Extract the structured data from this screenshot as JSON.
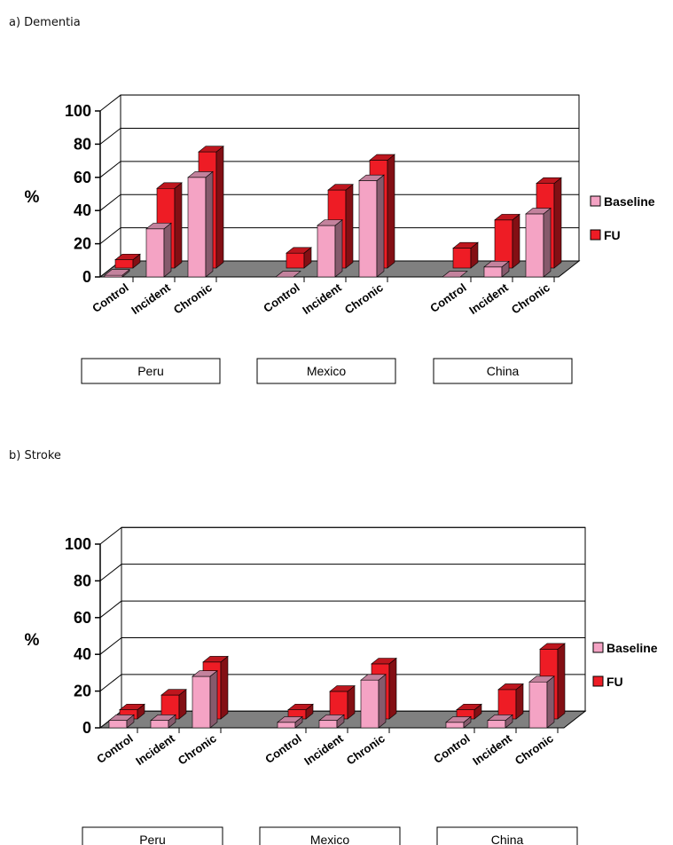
{
  "chart_data": [
    {
      "type": "bar",
      "title": "a) Dementia",
      "ylabel": "%",
      "ylim": [
        0,
        100
      ],
      "yticks": [
        "0",
        "20",
        "40",
        "60",
        "80",
        "100"
      ],
      "groups": [
        "Peru",
        "Mexico",
        "China"
      ],
      "categories": [
        "Control",
        "Incident",
        "Chronic"
      ],
      "series": [
        {
          "name": "Baseline",
          "color": "#f4a3c4",
          "values": [
            [
              1,
              29,
              60
            ],
            [
              0,
              31,
              58
            ],
            [
              0,
              6,
              38
            ]
          ]
        },
        {
          "name": "FU",
          "color": "#ee1c25",
          "values": [
            [
              5,
              48,
              70
            ],
            [
              9,
              47,
              65
            ],
            [
              12,
              29,
              51
            ]
          ]
        }
      ],
      "legend": "right",
      "grid": true
    },
    {
      "type": "bar",
      "title": "b) Stroke",
      "ylabel": "%",
      "ylim": [
        0,
        100
      ],
      "yticks": [
        "0",
        "20",
        "40",
        "60",
        "80",
        "100"
      ],
      "groups": [
        "Peru",
        "Mexico",
        "China"
      ],
      "categories": [
        "Control",
        "Incident",
        "Chronic"
      ],
      "series": [
        {
          "name": "Baseline",
          "color": "#f4a3c4",
          "values": [
            [
              4,
              4,
              28
            ],
            [
              3,
              4,
              26
            ],
            [
              3,
              4,
              25
            ]
          ]
        },
        {
          "name": "FU",
          "color": "#ee1c25",
          "values": [
            [
              5,
              13,
              31
            ],
            [
              5,
              15,
              30
            ],
            [
              5,
              16,
              38
            ]
          ]
        }
      ],
      "legend": "right",
      "grid": true
    }
  ]
}
